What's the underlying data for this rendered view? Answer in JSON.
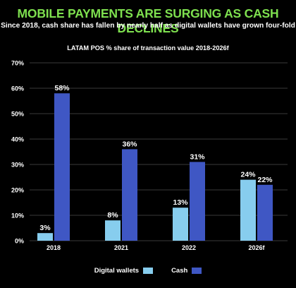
{
  "headline": "MOBILE PAYMENTS ARE SURGING AS CASH DECLINES",
  "subhead": "Since 2018, cash share has fallen by nearly half as digital wallets have grown four-fold",
  "chart_data": {
    "type": "bar",
    "title": "LATAM POS % share of transaction value 2018-2026f",
    "categories": [
      "2018",
      "2021",
      "2022",
      "2026f"
    ],
    "series": [
      {
        "name": "Digital wallets",
        "values": [
          3,
          8,
          13,
          24
        ],
        "labels": [
          "3%",
          "8%",
          "13%",
          "24%"
        ],
        "color": "#87cdee"
      },
      {
        "name": "Cash",
        "values": [
          58,
          36,
          31,
          22
        ],
        "labels": [
          "58%",
          "36%",
          "31%",
          "22%"
        ],
        "color": "#3f57c4"
      }
    ],
    "ylim": [
      0,
      70
    ],
    "yticks": [
      "0%",
      "10%",
      "20%",
      "30%",
      "40%",
      "50%",
      "60%",
      "70%"
    ],
    "grid": true,
    "legend": "bottom-center"
  }
}
